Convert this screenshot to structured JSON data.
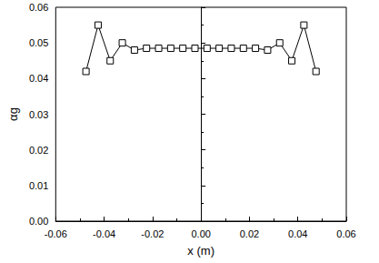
{
  "chart_data": {
    "type": "line",
    "marker": "square",
    "color": "#000000",
    "grid": false,
    "x_label": "x (m)",
    "y_label": "αg",
    "x": [
      -0.0475,
      -0.0425,
      -0.0375,
      -0.0325,
      -0.0275,
      -0.0225,
      -0.0175,
      -0.0125,
      -0.0075,
      -0.0025,
      0.0025,
      0.0075,
      0.0125,
      0.0175,
      0.0225,
      0.0275,
      0.0325,
      0.0375,
      0.0425,
      0.0475
    ],
    "values": [
      0.042,
      0.055,
      0.045,
      0.05,
      0.048,
      0.0485,
      0.0485,
      0.0485,
      0.0485,
      0.0485,
      0.0485,
      0.0485,
      0.0485,
      0.0485,
      0.0485,
      0.048,
      0.05,
      0.045,
      0.055,
      0.042
    ],
    "xlim": [
      -0.06,
      0.06
    ],
    "xticks": [
      -0.06,
      -0.04,
      -0.02,
      {
        "value": 0,
        "label": "0.00"
      },
      0.02,
      0.04,
      0.06
    ],
    "ylim": [
      0,
      0.06
    ],
    "yticks": [
      {
        "value": 0,
        "label": "0.00"
      },
      0.01,
      0.02,
      0.03,
      0.04,
      0.05,
      0.06
    ]
  }
}
